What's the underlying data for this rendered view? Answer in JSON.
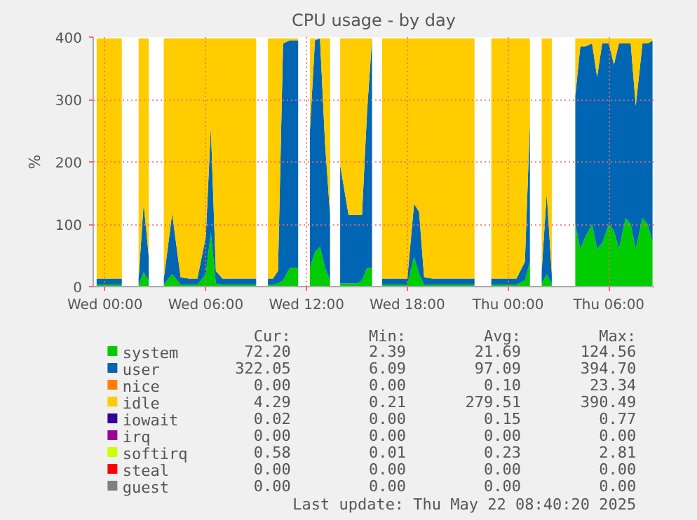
{
  "chart_data": {
    "type": "area",
    "stacked": true,
    "title": "CPU usage - by day",
    "ylabel": "%",
    "x": [
      "2025-05-20T23:30",
      "2025-05-21T00:00",
      "2025-05-21T00:30",
      "2025-05-21T01:00",
      "2025-05-21T01:29",
      "2025-05-21T02:00",
      "2025-05-21T02:18",
      "2025-05-21T02:36",
      "2025-05-21T03:05",
      "2025-05-21T03:30",
      "2025-05-21T04:00",
      "2025-05-21T04:30",
      "2025-05-21T05:00",
      "2025-05-21T05:30",
      "2025-05-21T06:00",
      "2025-05-21T06:18",
      "2025-05-21T06:36",
      "2025-05-21T07:00",
      "2025-05-21T07:30",
      "2025-05-21T08:00",
      "2025-05-21T08:30",
      "2025-05-21T09:00",
      "2025-05-21T09:20",
      "2025-05-21T09:42",
      "2025-05-21T10:00",
      "2025-05-21T10:18",
      "2025-05-21T10:36",
      "2025-05-21T11:00",
      "2025-05-21T11:30",
      "2025-05-21T11:50",
      "2025-05-21T12:12",
      "2025-05-21T12:30",
      "2025-05-21T12:48",
      "2025-05-21T13:06",
      "2025-05-21T13:24",
      "2025-05-21T13:42",
      "2025-05-21T14:00",
      "2025-05-21T14:30",
      "2025-05-21T15:00",
      "2025-05-21T15:18",
      "2025-05-21T15:36",
      "2025-05-21T15:54",
      "2025-05-21T16:12",
      "2025-05-21T16:30",
      "2025-05-21T17:00",
      "2025-05-21T17:30",
      "2025-05-21T18:00",
      "2025-05-21T18:24",
      "2025-05-21T18:42",
      "2025-05-21T19:00",
      "2025-05-21T19:30",
      "2025-05-21T20:00",
      "2025-05-21T20:30",
      "2025-05-21T21:00",
      "2025-05-21T21:30",
      "2025-05-21T22:00",
      "2025-05-21T22:42",
      "2025-05-21T23:00",
      "2025-05-21T23:30",
      "2025-05-22T00:00",
      "2025-05-22T00:30",
      "2025-05-22T01:00",
      "2025-05-22T01:18",
      "2025-05-22T01:42",
      "2025-05-22T02:00",
      "2025-05-22T02:18",
      "2025-05-22T02:36",
      "2025-05-22T02:58",
      "2025-05-22T03:04",
      "2025-05-22T03:38",
      "2025-05-22T03:44",
      "2025-05-22T04:00",
      "2025-05-22T04:18",
      "2025-05-22T04:36",
      "2025-05-22T05:00",
      "2025-05-22T05:18",
      "2025-05-22T05:36",
      "2025-05-22T06:00",
      "2025-05-22T06:18",
      "2025-05-22T06:36",
      "2025-05-22T07:00",
      "2025-05-22T07:18",
      "2025-05-22T07:36",
      "2025-05-22T08:00",
      "2025-05-22T08:18",
      "2025-05-22T08:36"
    ],
    "series": [
      {
        "name": "system",
        "color": "#00cc00",
        "values": [
          3,
          3,
          3,
          3,
          null,
          3,
          23,
          10,
          null,
          3,
          20,
          3,
          3,
          3,
          20,
          87,
          5,
          3,
          3,
          3,
          3,
          3,
          null,
          3,
          3,
          5,
          10,
          30,
          30,
          null,
          30,
          55,
          64,
          30,
          10,
          null,
          5,
          5,
          5,
          10,
          30,
          30,
          null,
          3,
          3,
          3,
          3,
          48,
          20,
          3,
          3,
          3,
          3,
          3,
          3,
          3,
          null,
          3,
          3,
          3,
          3,
          10,
          40,
          null,
          5,
          20,
          5,
          null,
          null,
          null,
          null,
          100,
          60,
          80,
          100,
          60,
          70,
          100,
          90,
          60,
          110,
          100,
          60,
          110,
          100,
          72
        ]
      },
      {
        "name": "user",
        "color": "#0066b3",
        "values": [
          10,
          10,
          10,
          10,
          null,
          10,
          110,
          40,
          null,
          10,
          97,
          12,
          10,
          10,
          60,
          168,
          20,
          10,
          10,
          10,
          10,
          10,
          null,
          10,
          10,
          20,
          380,
          365,
          365,
          null,
          220,
          340,
          334,
          200,
          105,
          null,
          190,
          110,
          110,
          105,
          250,
          368,
          null,
          10,
          10,
          10,
          10,
          85,
          100,
          12,
          10,
          10,
          10,
          10,
          10,
          10,
          null,
          10,
          10,
          10,
          10,
          30,
          224,
          null,
          20,
          130,
          15,
          null,
          null,
          null,
          null,
          206,
          325,
          305,
          290,
          276,
          320,
          290,
          266,
          330,
          280,
          290,
          230,
          280,
          290,
          322
        ]
      },
      {
        "name": "nice",
        "color": "#ff8000",
        "values": [
          null,
          null,
          null,
          null,
          null,
          null,
          null,
          null,
          null,
          null,
          null,
          null,
          null,
          null,
          null,
          null,
          null,
          null,
          null,
          null,
          null,
          null,
          null,
          null,
          null,
          null,
          null,
          null,
          null,
          null,
          null,
          null,
          null,
          null,
          null,
          null,
          null,
          null,
          null,
          null,
          null,
          null,
          null,
          null,
          null,
          null,
          null,
          null,
          null,
          null,
          null,
          null,
          null,
          null,
          null,
          null,
          null,
          null,
          null,
          null,
          null,
          null,
          null,
          null,
          null,
          null,
          null,
          null,
          null,
          null,
          null,
          null,
          null,
          null,
          null,
          null,
          null,
          null,
          null,
          null,
          null,
          null,
          null,
          null,
          null,
          null
        ]
      },
      {
        "name": "idle",
        "color": "#ffcc00",
        "values": [
          385,
          385,
          385,
          385,
          null,
          385,
          265,
          348,
          null,
          385,
          281,
          383,
          385,
          385,
          318,
          143,
          373,
          385,
          385,
          385,
          385,
          385,
          null,
          385,
          385,
          373,
          8,
          3,
          3,
          null,
          148,
          3,
          0,
          168,
          283,
          null,
          203,
          283,
          283,
          283,
          118,
          0,
          null,
          385,
          385,
          385,
          385,
          265,
          278,
          383,
          385,
          385,
          385,
          385,
          385,
          385,
          null,
          385,
          385,
          385,
          385,
          358,
          134,
          null,
          373,
          248,
          378,
          null,
          null,
          null,
          null,
          92,
          13,
          13,
          8,
          62,
          8,
          8,
          42,
          8,
          8,
          8,
          108,
          8,
          8,
          4
        ]
      },
      {
        "name": "iowait",
        "color": "#330099",
        "values": [
          null,
          null,
          null,
          null,
          null,
          null,
          null,
          null,
          null,
          null,
          null,
          null,
          null,
          null,
          null,
          null,
          null,
          null,
          null,
          null,
          null,
          null,
          null,
          null,
          null,
          null,
          null,
          null,
          null,
          null,
          null,
          null,
          null,
          null,
          null,
          null,
          null,
          null,
          null,
          null,
          null,
          null,
          null,
          null,
          null,
          null,
          null,
          null,
          null,
          null,
          null,
          null,
          null,
          null,
          null,
          null,
          null,
          null,
          null,
          null,
          null,
          null,
          null,
          null,
          null,
          null,
          null,
          null,
          null,
          null,
          null,
          null,
          null,
          null,
          null,
          null,
          null,
          null,
          null,
          null,
          null,
          null,
          null,
          null,
          null,
          null
        ]
      },
      {
        "name": "irq",
        "color": "#990099",
        "values": [
          null,
          null,
          null,
          null,
          null,
          null,
          null,
          null,
          null,
          null,
          null,
          null,
          null,
          null,
          null,
          null,
          null,
          null,
          null,
          null,
          null,
          null,
          null,
          null,
          null,
          null,
          null,
          null,
          null,
          null,
          null,
          null,
          null,
          null,
          null,
          null,
          null,
          null,
          null,
          null,
          null,
          null,
          null,
          null,
          null,
          null,
          null,
          null,
          null,
          null,
          null,
          null,
          null,
          null,
          null,
          null,
          null,
          null,
          null,
          null,
          null,
          null,
          null,
          null,
          null,
          null,
          null,
          null,
          null,
          null,
          null,
          null,
          null,
          null,
          null,
          null,
          null,
          null,
          null,
          null,
          null,
          null,
          null,
          null,
          null,
          null
        ]
      },
      {
        "name": "softirq",
        "color": "#ccff00",
        "values": [
          null,
          null,
          null,
          null,
          null,
          null,
          null,
          null,
          null,
          null,
          null,
          null,
          null,
          null,
          null,
          null,
          null,
          null,
          null,
          null,
          null,
          null,
          null,
          null,
          null,
          null,
          null,
          null,
          null,
          null,
          null,
          null,
          null,
          null,
          null,
          null,
          null,
          null,
          null,
          null,
          null,
          null,
          null,
          null,
          null,
          null,
          null,
          null,
          null,
          null,
          null,
          null,
          null,
          null,
          null,
          null,
          null,
          null,
          null,
          null,
          null,
          null,
          null,
          null,
          null,
          null,
          null,
          null,
          null,
          null,
          null,
          null,
          null,
          null,
          null,
          null,
          null,
          null,
          null,
          null,
          null,
          null,
          null,
          null,
          null,
          null
        ]
      },
      {
        "name": "steal",
        "color": "#ff0000",
        "values": [
          null,
          null,
          null,
          null,
          null,
          null,
          null,
          null,
          null,
          null,
          null,
          null,
          null,
          null,
          null,
          null,
          null,
          null,
          null,
          null,
          null,
          null,
          null,
          null,
          null,
          null,
          null,
          null,
          null,
          null,
          null,
          null,
          null,
          null,
          null,
          null,
          null,
          null,
          null,
          null,
          null,
          null,
          null,
          null,
          null,
          null,
          null,
          null,
          null,
          null,
          null,
          null,
          null,
          null,
          null,
          null,
          null,
          null,
          null,
          null,
          null,
          null,
          null,
          null,
          null,
          null,
          null,
          null,
          null,
          null,
          null,
          null,
          null,
          null,
          null,
          null,
          null,
          null,
          null,
          null,
          null,
          null,
          null,
          null,
          null,
          null
        ]
      },
      {
        "name": "guest",
        "color": "#808080",
        "values": [
          null,
          null,
          null,
          null,
          null,
          null,
          null,
          null,
          null,
          null,
          null,
          null,
          null,
          null,
          null,
          null,
          null,
          null,
          null,
          null,
          null,
          null,
          null,
          null,
          null,
          null,
          null,
          null,
          null,
          null,
          null,
          null,
          null,
          null,
          null,
          null,
          null,
          null,
          null,
          null,
          null,
          null,
          null,
          null,
          null,
          null,
          null,
          null,
          null,
          null,
          null,
          null,
          null,
          null,
          null,
          null,
          null,
          null,
          null,
          null,
          null,
          null,
          null,
          null,
          null,
          null,
          null,
          null,
          null,
          null,
          null,
          null,
          null,
          null,
          null,
          null,
          null,
          null,
          null,
          null,
          null,
          null,
          null,
          null,
          null,
          null
        ]
      }
    ],
    "xlim": [
      "2025-05-20T23:18",
      "2025-05-22T08:42"
    ],
    "xticks": [
      {
        "value": "2025-05-21T00:00",
        "label": "Wed 00:00"
      },
      {
        "value": "2025-05-21T06:00",
        "label": "Wed 06:00"
      },
      {
        "value": "2025-05-21T12:00",
        "label": "Wed 12:00"
      },
      {
        "value": "2025-05-21T18:00",
        "label": "Wed 18:00"
      },
      {
        "value": "2025-05-22T00:00",
        "label": "Thu 00:00"
      },
      {
        "value": "2025-05-22T06:00",
        "label": "Thu 06:00"
      }
    ],
    "ylim": [
      0,
      400
    ],
    "yticks": [
      0,
      100,
      200,
      300,
      400
    ],
    "grid": true,
    "legend": "bottom",
    "annotations": [
      "Cur:",
      "Min:",
      "Avg:",
      "Max:",
      "72.20",
      "2.39",
      "21.69",
      "124.56",
      "322.05",
      "6.09",
      "97.09",
      "394.70",
      "0.00",
      "0.00",
      "0.10",
      "23.34",
      "4.29",
      "0.21",
      "279.51",
      "390.49",
      "0.02",
      "0.00",
      "0.15",
      "0.77",
      "0.00",
      "0.00",
      "0.00",
      "0.00",
      "0.58",
      "0.01",
      "0.23",
      "2.81",
      "0.00",
      "0.00",
      "0.00",
      "0.00",
      "0.00",
      "0.00",
      "0.00",
      "0.00",
      "Last update: Thu May 22 08:40:20 2025"
    ]
  }
}
